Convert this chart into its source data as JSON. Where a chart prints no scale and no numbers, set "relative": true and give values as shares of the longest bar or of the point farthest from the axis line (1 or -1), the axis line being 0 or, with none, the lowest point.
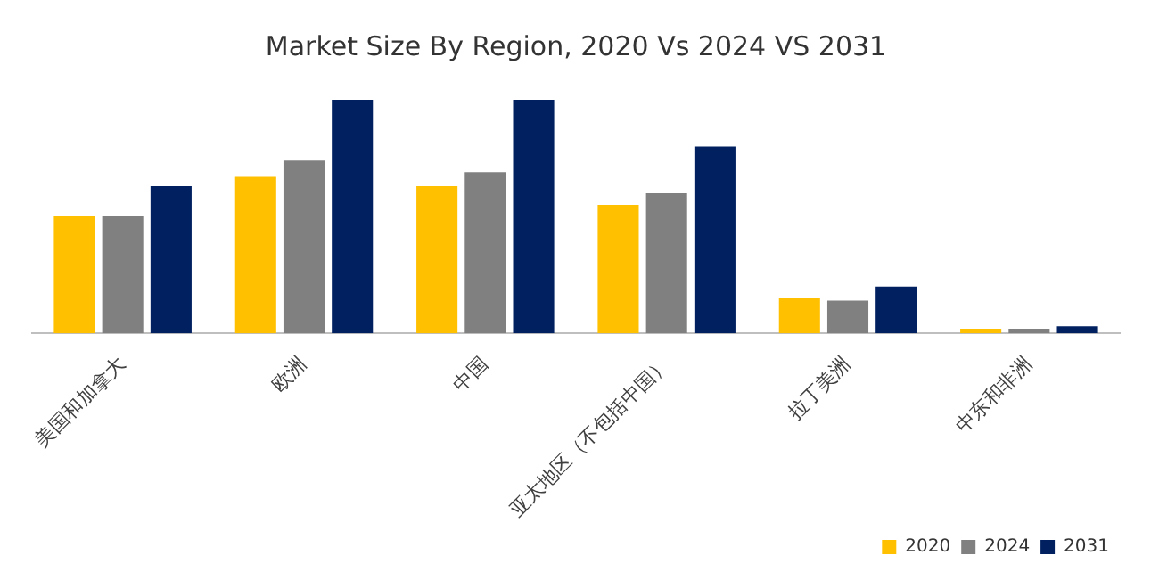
{
  "chart_data": {
    "type": "bar",
    "title": "Market Size By Region, 2020 Vs 2024 VS 2031",
    "relative": true,
    "categories": [
      "美国和加拿大",
      "欧洲",
      "中国",
      "亚太地区（不包括中国）",
      "拉丁美洲",
      "中东和非洲"
    ],
    "series": [
      {
        "name": "2020",
        "color": "#ffc000",
        "values": [
          0.5,
          0.67,
          0.63,
          0.55,
          0.15,
          0.02
        ]
      },
      {
        "name": "2024",
        "color": "#808080",
        "values": [
          0.5,
          0.74,
          0.69,
          0.6,
          0.14,
          0.02
        ]
      },
      {
        "name": "2031",
        "color": "#002060",
        "values": [
          0.63,
          1,
          1,
          0.8,
          0.2,
          0.03
        ]
      }
    ],
    "grid": false,
    "legend": "bottom right"
  }
}
